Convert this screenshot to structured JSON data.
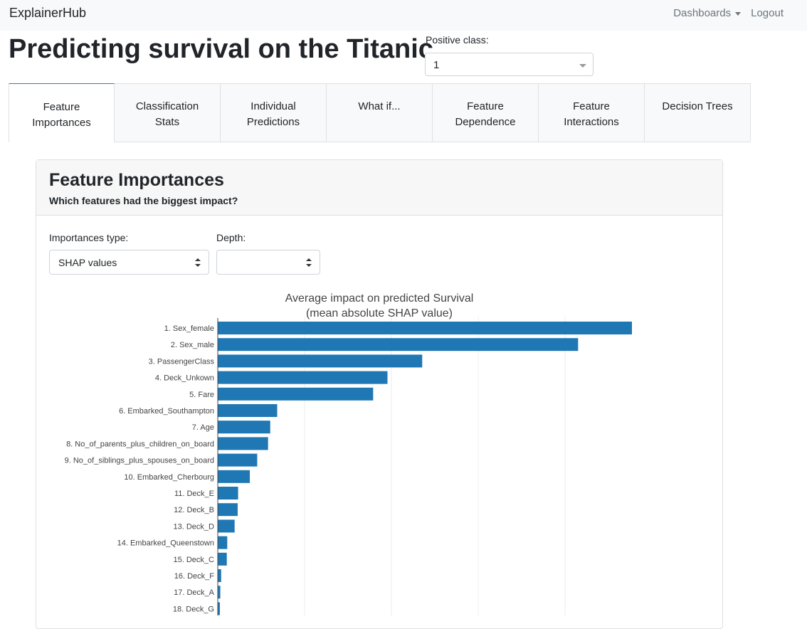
{
  "navbar": {
    "brand": "ExplainerHub",
    "dashboards_label": "Dashboards",
    "logout_label": "Logout"
  },
  "header": {
    "title": "Predicting survival on the Titanic",
    "positive_class_label": "Positive class:",
    "positive_class_value": "1"
  },
  "tabs": [
    {
      "line1": "Feature",
      "line2": "Importances",
      "active": true
    },
    {
      "line1": "Classification",
      "line2": "Stats"
    },
    {
      "line1": "Individual",
      "line2": "Predictions"
    },
    {
      "line1": "What if...",
      "line2": ""
    },
    {
      "line1": "Feature",
      "line2": "Dependence"
    },
    {
      "line1": "Feature",
      "line2": "Interactions"
    },
    {
      "line1": "Decision Trees",
      "line2": ""
    }
  ],
  "card": {
    "title": "Feature Importances",
    "subtitle": "Which features had the biggest impact?",
    "importances_type_label": "Importances type:",
    "importances_type_value": "SHAP values",
    "depth_label": "Depth:",
    "depth_value": ""
  },
  "colors": {
    "bar": "#1f77b4",
    "active_tab_border": "#2c7bb6"
  },
  "chart_data": {
    "type": "bar",
    "orientation": "horizontal",
    "title_line1": "Average impact on predicted Survival",
    "title_line2": "(mean absolute SHAP value)",
    "categories": [
      "1. Sex_female",
      "2. Sex_male",
      "3. PassengerClass",
      "4. Deck_Unkown",
      "5. Fare",
      "6. Embarked_Southampton",
      "7. Age",
      "8. No_of_parents_plus_children_on_board",
      "9. No_of_siblings_plus_spouses_on_board",
      "10. Embarked_Cherbourg",
      "11. Deck_E",
      "12. Deck_B",
      "13. Deck_D",
      "14. Embarked_Queenstown",
      "15. Deck_C",
      "16. Deck_F",
      "17. Deck_A",
      "18. Deck_G"
    ],
    "values": [
      0.0953,
      0.0829,
      0.047,
      0.039,
      0.0357,
      0.0136,
      0.012,
      0.0115,
      0.009,
      0.0073,
      0.0046,
      0.0045,
      0.0038,
      0.0021,
      0.002,
      0.0007,
      0.0005,
      0.0004
    ],
    "xlim": [
      0,
      0.108
    ],
    "gridlines": [
      0.02,
      0.04,
      0.06,
      0.08
    ],
    "grid": true,
    "legend": false
  }
}
